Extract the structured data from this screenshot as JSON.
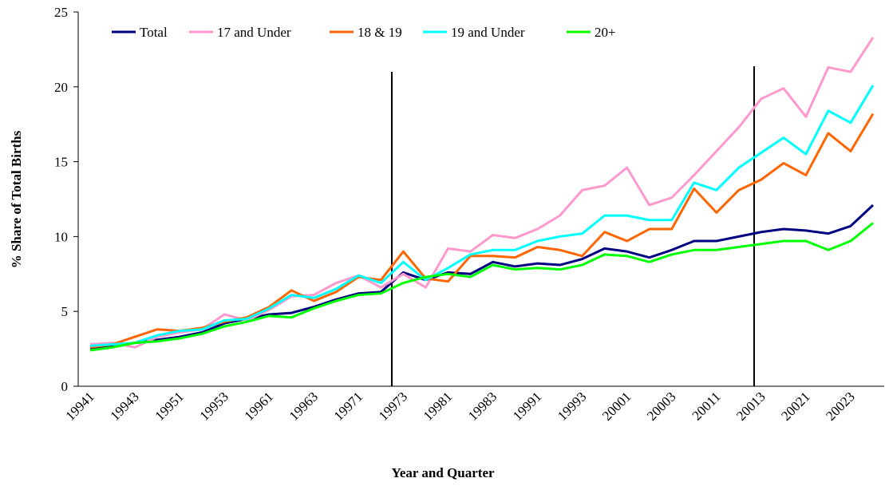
{
  "chart_data": {
    "type": "line",
    "xlabel": "Year and Quarter",
    "ylabel": "% Share of Total Births",
    "categories": [
      "19941",
      null,
      "19943",
      null,
      "19951",
      null,
      "19953",
      null,
      "19961",
      null,
      "19963",
      null,
      "19971",
      null,
      "19973",
      null,
      "19981",
      null,
      "19983",
      null,
      "19991",
      null,
      "19993",
      null,
      "20001",
      null,
      "20003",
      null,
      "20011",
      null,
      "20013",
      null,
      "20021",
      null,
      "20023",
      null
    ],
    "series": [
      {
        "name": "Total",
        "color": "#000080",
        "values": [
          2.5,
          2.7,
          2.9,
          3.1,
          3.3,
          3.6,
          4.2,
          4.5,
          4.8,
          4.9,
          5.3,
          5.8,
          6.2,
          6.3,
          7.6,
          7.1,
          7.6,
          7.5,
          8.3,
          8.0,
          8.2,
          8.1,
          8.5,
          9.2,
          9.0,
          8.6,
          9.1,
          9.7,
          9.7,
          10.0,
          10.3,
          10.5,
          10.4,
          10.2,
          10.7,
          12.1
        ]
      },
      {
        "name": "17 and Under",
        "color": "#ff99cc",
        "values": [
          2.8,
          2.9,
          2.6,
          3.3,
          3.6,
          3.8,
          4.8,
          4.4,
          5.1,
          6.0,
          6.1,
          6.9,
          7.4,
          6.6,
          7.5,
          6.6,
          9.2,
          9.0,
          10.1,
          9.9,
          10.5,
          11.4,
          13.1,
          13.4,
          14.6,
          12.1,
          12.6,
          14.1,
          15.7,
          17.3,
          19.2,
          19.9,
          18.0,
          21.3,
          21.0,
          23.3
        ]
      },
      {
        "name": "18 & 19",
        "color": "#ff6600",
        "values": [
          2.6,
          2.8,
          3.3,
          3.8,
          3.7,
          3.9,
          4.3,
          4.6,
          5.3,
          6.4,
          5.7,
          6.3,
          7.3,
          7.1,
          9.0,
          7.2,
          7.0,
          8.7,
          8.7,
          8.6,
          9.3,
          9.1,
          8.7,
          10.3,
          9.7,
          10.5,
          10.5,
          13.2,
          11.6,
          13.1,
          13.8,
          14.9,
          14.1,
          16.9,
          15.7,
          18.2
        ]
      },
      {
        "name": "19 and Under",
        "color": "#00ffff",
        "values": [
          2.7,
          2.8,
          2.9,
          3.4,
          3.7,
          3.8,
          4.4,
          4.5,
          5.2,
          6.1,
          5.9,
          6.5,
          7.4,
          6.9,
          8.3,
          7.1,
          7.9,
          8.8,
          9.1,
          9.1,
          9.7,
          10.0,
          10.2,
          11.4,
          11.4,
          11.1,
          11.1,
          13.6,
          13.1,
          14.6,
          15.6,
          16.6,
          15.5,
          18.4,
          17.6,
          20.1
        ]
      },
      {
        "name": "20+",
        "color": "#00ff00",
        "values": [
          2.4,
          2.6,
          2.9,
          3.0,
          3.2,
          3.5,
          4.0,
          4.3,
          4.7,
          4.6,
          5.2,
          5.7,
          6.1,
          6.2,
          6.9,
          7.3,
          7.5,
          7.3,
          8.1,
          7.8,
          7.9,
          7.8,
          8.1,
          8.8,
          8.7,
          8.3,
          8.8,
          9.1,
          9.1,
          9.3,
          9.5,
          9.7,
          9.7,
          9.1,
          9.7,
          10.9
        ]
      }
    ],
    "ylim": [
      0,
      25
    ],
    "yticks": [
      0,
      5,
      10,
      15,
      20,
      25
    ],
    "grid": false,
    "legend": "top-left"
  }
}
